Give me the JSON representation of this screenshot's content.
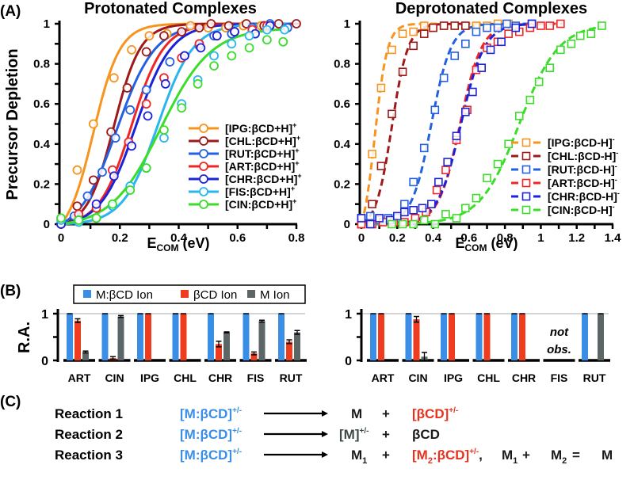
{
  "panel_labels": {
    "a": "(A)",
    "b": "(B)",
    "c": "(C)"
  },
  "colors": {
    "IPG": "#f7941d",
    "CHL": "#9e1a1a",
    "RUT": "#2361e0",
    "ART": "#ee2626",
    "CHR": "#1c22d8",
    "FIS": "#2bb5ee",
    "CIN": "#3bdc2a",
    "bar_complex": "#3a8ee6",
    "bar_bcd": "#f03c1e",
    "bar_m": "#5c6666"
  },
  "chart_data": [
    {
      "type": "line",
      "title": "Protonated Complexes",
      "xlabel_main": "E",
      "xlabel_sub": "COM",
      "xlabel_unit": " (eV)",
      "ylabel": "Precursor Depletion",
      "xlim": [
        0,
        0.8
      ],
      "ylim": [
        0,
        1
      ],
      "xticks": [
        "0",
        "0.2",
        "0.4",
        "0.6",
        "0.8"
      ],
      "xtick_values": [
        0,
        0.2,
        0.4,
        0.6,
        0.8
      ],
      "yticks": [
        "0",
        "0.2",
        "0.4",
        "0.6",
        "0.8",
        "1"
      ],
      "ytick_values": [
        0,
        0.2,
        0.4,
        0.6,
        0.8,
        1
      ],
      "legend_position": "center-right",
      "marker": "circle",
      "line_style": "solid",
      "series": [
        {
          "key": "IPG",
          "name": "[IPG:βCD+H]",
          "charge": "+",
          "fit": {
            "e50": 0.11,
            "k": 0.045,
            "max": 1.0
          },
          "x": [
            0,
            0.055,
            0.11,
            0.18,
            0.24,
            0.3,
            0.36,
            0.44,
            0.5,
            0.56,
            0.62,
            0.68
          ],
          "y": [
            0.03,
            0.27,
            0.5,
            0.73,
            0.87,
            0.94,
            0.95,
            0.99,
            0.98,
            0.98,
            0.99,
            0.99
          ]
        },
        {
          "key": "CHL",
          "name": "[CHL:βCD+H]",
          "charge": "+",
          "fit": {
            "e50": 0.18,
            "k": 0.045,
            "max": 1.0
          },
          "x": [
            0,
            0.055,
            0.11,
            0.17,
            0.225,
            0.29,
            0.35,
            0.41,
            0.47,
            0.51,
            0.57,
            0.63,
            0.69,
            0.74,
            0.8
          ],
          "y": [
            0.0,
            0.09,
            0.22,
            0.46,
            0.68,
            0.86,
            0.94,
            0.96,
            0.98,
            1.0,
            0.99,
            1.0,
            0.99,
            1.0,
            1.0
          ]
        },
        {
          "key": "RUT",
          "name": "[RUT:βCD+H]",
          "charge": "+",
          "fit": {
            "e50": 0.19,
            "k": 0.065,
            "max": 1.0
          },
          "x": [
            0,
            0.045,
            0.09,
            0.14,
            0.185,
            0.235,
            0.29,
            0.37,
            0.42,
            0.47,
            0.52,
            0.58,
            0.65,
            0.71,
            0.77
          ],
          "y": [
            0.0,
            0.04,
            0.14,
            0.26,
            0.43,
            0.57,
            0.67,
            0.81,
            0.84,
            0.89,
            0.94,
            0.95,
            0.98,
            1.0,
            0.98
          ]
        },
        {
          "key": "ART",
          "name": "[ART:βCD+H]",
          "charge": "+",
          "fit": {
            "e50": 0.24,
            "k": 0.055,
            "max": 1.0
          },
          "x": [
            0,
            0.06,
            0.12,
            0.175,
            0.23,
            0.29,
            0.35,
            0.41,
            0.47,
            0.53,
            0.59,
            0.65,
            0.7
          ],
          "y": [
            0.0,
            0.05,
            0.08,
            0.27,
            0.41,
            0.6,
            0.73,
            0.83,
            0.9,
            0.94,
            0.96,
            0.97,
            0.99
          ]
        },
        {
          "key": "CHR",
          "name": "[CHR:βCD+H]",
          "charge": "+",
          "fit": {
            "e50": 0.255,
            "k": 0.06,
            "max": 1.0
          },
          "x": [
            0,
            0.06,
            0.12,
            0.18,
            0.24,
            0.295,
            0.355,
            0.42,
            0.475,
            0.53,
            0.59,
            0.66,
            0.71
          ],
          "y": [
            0.0,
            0.02,
            0.1,
            0.24,
            0.39,
            0.54,
            0.7,
            0.84,
            0.88,
            0.94,
            0.96,
            0.95,
            0.99
          ]
        },
        {
          "key": "FIS",
          "name": "[FIS:βCD+H]",
          "charge": "+",
          "fit": {
            "e50": 0.33,
            "k": 0.06,
            "max": 1.0
          },
          "x": [
            0,
            0.06,
            0.12,
            0.175,
            0.235,
            0.29,
            0.35,
            0.41,
            0.465,
            0.52,
            0.58,
            0.64,
            0.7,
            0.76
          ],
          "y": [
            0.02,
            0.01,
            0.03,
            0.09,
            0.19,
            0.28,
            0.43,
            0.6,
            0.72,
            0.84,
            0.9,
            0.94,
            0.97,
            0.97
          ]
        },
        {
          "key": "CIN",
          "name": "[CIN:βCD+H]",
          "charge": "+",
          "fit": {
            "e50": 0.34,
            "k": 0.085,
            "max": 0.98
          },
          "x": [
            0,
            0.06,
            0.12,
            0.175,
            0.235,
            0.29,
            0.35,
            0.41,
            0.465,
            0.52,
            0.58,
            0.64,
            0.7,
            0.755
          ],
          "y": [
            0.03,
            0.02,
            0.03,
            0.1,
            0.17,
            0.28,
            0.47,
            0.58,
            0.7,
            0.79,
            0.84,
            0.88,
            0.92,
            0.91
          ]
        }
      ]
    },
    {
      "type": "line",
      "title": "Deprotonated Complexes",
      "xlabel_main": "E",
      "xlabel_sub": "COM",
      "xlabel_unit": " (eV)",
      "ylabel": "",
      "xlim": [
        0,
        1.4
      ],
      "ylim": [
        0,
        1
      ],
      "xticks": [
        "0",
        "0.2",
        "0.4",
        "0.6",
        "0.8",
        "1",
        "1.2",
        "1.4"
      ],
      "xtick_values": [
        0,
        0.2,
        0.4,
        0.6,
        0.8,
        1.0,
        1.2,
        1.4
      ],
      "yticks": [
        "0",
        "0.2",
        "0.4",
        "0.6",
        "0.8",
        "1"
      ],
      "ytick_values": [
        0,
        0.2,
        0.4,
        0.6,
        0.8,
        1
      ],
      "legend_position": "center-right",
      "marker": "square",
      "line_style": "dashed",
      "series": [
        {
          "key": "IPG",
          "name": "[IPG:βCD-H]",
          "charge": "-",
          "fit": {
            "e50": 0.075,
            "k": 0.035,
            "max": 1.0
          },
          "x": [
            0,
            0.06,
            0.11,
            0.17,
            0.23,
            0.29,
            0.35,
            0.4,
            0.46,
            0.52,
            0.58,
            0.64,
            0.7,
            0.76,
            0.82
          ],
          "y": [
            0.0,
            0.35,
            0.68,
            0.87,
            0.95,
            0.96,
            0.99,
            0.98,
            0.99,
            0.99,
            0.99,
            0.99,
            0.99,
            1.0,
            1.0
          ]
        },
        {
          "key": "CHL",
          "name": "[CHL:βCD-H]",
          "charge": "-",
          "fit": {
            "e50": 0.17,
            "k": 0.045,
            "max": 1.0
          },
          "x": [
            0,
            0.06,
            0.11,
            0.17,
            0.23,
            0.29,
            0.35,
            0.4,
            0.46,
            0.52,
            0.58
          ],
          "y": [
            0.0,
            0.1,
            0.29,
            0.55,
            0.76,
            0.89,
            0.95,
            0.98,
            0.99,
            0.99,
            0.99
          ]
        },
        {
          "key": "RUT",
          "name": "[RUT:βCD-H]",
          "charge": "-",
          "fit": {
            "e50": 0.39,
            "k": 0.055,
            "max": 1.0
          },
          "x": [
            0,
            0.05,
            0.1,
            0.15,
            0.2,
            0.24,
            0.29,
            0.35,
            0.41,
            0.46,
            0.52,
            0.58,
            0.64,
            0.7,
            0.76,
            0.81,
            0.86,
            0.95
          ],
          "y": [
            0.03,
            0.04,
            0.02,
            0.03,
            0.03,
            0.1,
            0.21,
            0.38,
            0.57,
            0.73,
            0.84,
            0.9,
            0.96,
            0.98,
            0.98,
            1.0,
            0.99,
            1.0
          ]
        },
        {
          "key": "ART",
          "name": "[ART:βCD-H]",
          "charge": "-",
          "fit": {
            "e50": 0.55,
            "k": 0.06,
            "max": 1.0
          },
          "x": [
            0,
            0.06,
            0.12,
            0.18,
            0.24,
            0.3,
            0.36,
            0.42,
            0.47,
            0.53,
            0.59,
            0.64,
            0.7,
            0.76,
            0.82,
            0.88,
            0.94,
            1.0,
            1.05,
            1.11
          ],
          "y": [
            0.0,
            0.0,
            0.01,
            0.01,
            0.01,
            0.03,
            0.06,
            0.17,
            0.27,
            0.42,
            0.57,
            0.77,
            0.88,
            0.91,
            0.95,
            0.96,
            0.98,
            0.99,
            0.99,
            1.0
          ]
        },
        {
          "key": "CHR",
          "name": "[CHR:βCD-H]",
          "charge": "-",
          "fit": {
            "e50": 0.555,
            "k": 0.065,
            "max": 1.0
          },
          "x": [
            0,
            0.05,
            0.1,
            0.16,
            0.2,
            0.24,
            0.29,
            0.34,
            0.39,
            0.43,
            0.48,
            0.53,
            0.58,
            0.62,
            0.67,
            0.72,
            0.78,
            0.86,
            0.95
          ],
          "y": [
            0.03,
            0.0,
            0.03,
            0.02,
            0.04,
            0.06,
            0.07,
            0.08,
            0.1,
            0.21,
            0.31,
            0.44,
            0.56,
            0.66,
            0.78,
            0.87,
            0.91,
            0.98,
            1.0
          ]
        },
        {
          "key": "CIN",
          "name": "[CIN:βCD-H]",
          "charge": "-",
          "fit": {
            "e50": 0.88,
            "k": 0.11,
            "max": 1.0
          },
          "x": [
            0.17,
            0.23,
            0.29,
            0.35,
            0.41,
            0.47,
            0.53,
            0.58,
            0.64,
            0.7,
            0.76,
            0.82,
            0.88,
            0.94,
            0.99,
            1.05,
            1.11,
            1.17,
            1.22,
            1.28,
            1.34
          ],
          "y": [
            0.0,
            0.0,
            0.0,
            0.02,
            0.0,
            0.05,
            0.03,
            0.08,
            0.13,
            0.23,
            0.3,
            0.4,
            0.54,
            0.62,
            0.71,
            0.78,
            0.87,
            0.9,
            0.94,
            0.95,
            0.99
          ]
        }
      ]
    },
    {
      "type": "bar",
      "title": "",
      "ylabel": "R.A.",
      "ylim": [
        0,
        1
      ],
      "yticks": [
        "0",
        "1"
      ],
      "categories": [
        "ART",
        "CIN",
        "IPG",
        "CHL",
        "CHR",
        "FIS",
        "RUT"
      ],
      "legend": [
        "M:βCD Ion",
        "βCD Ion",
        "M Ion"
      ],
      "legend_position": "top",
      "series": [
        {
          "name": "M:βCD Ion",
          "values": [
            1,
            1,
            1,
            1,
            1,
            1,
            1
          ],
          "errors": [
            0,
            0,
            0,
            0,
            0,
            0,
            0
          ]
        },
        {
          "name": "βCD Ion",
          "values": [
            0.85,
            0.05,
            1,
            1,
            0.35,
            0.15,
            0.4
          ],
          "errors": [
            0.04,
            0.03,
            0,
            0,
            0.06,
            0.03,
            0.04
          ]
        },
        {
          "name": "M Ion",
          "values": [
            0.18,
            0.94,
            0,
            0,
            0.6,
            0.84,
            0.6
          ],
          "errors": [
            0.02,
            0.02,
            0,
            0,
            0.01,
            0.02,
            0.04
          ]
        }
      ]
    },
    {
      "type": "bar",
      "title": "",
      "ylabel": "",
      "ylim": [
        0,
        1
      ],
      "yticks": [
        "0",
        "1"
      ],
      "categories": [
        "ART",
        "CIN",
        "IPG",
        "CHL",
        "CHR",
        "FIS",
        "RUT"
      ],
      "not_observed": [
        "FIS"
      ],
      "not_observed_label": [
        "not",
        "obs."
      ],
      "series": [
        {
          "name": "M:βCD Ion",
          "values": [
            1,
            1,
            1,
            1,
            1,
            null,
            1
          ],
          "errors": [
            0,
            0,
            0,
            0,
            0,
            null,
            0
          ]
        },
        {
          "name": "βCD Ion",
          "values": [
            1,
            0.88,
            1,
            1,
            1,
            null,
            0
          ],
          "errors": [
            0,
            0.06,
            0,
            0,
            0,
            null,
            0
          ]
        },
        {
          "name": "M Ion",
          "values": [
            0,
            0.08,
            0,
            0,
            0,
            null,
            1
          ],
          "errors": [
            0,
            0.09,
            0,
            0,
            0,
            null,
            0
          ]
        }
      ]
    }
  ],
  "reactions": [
    {
      "label": "Reaction 1",
      "reactant": "[M:βCD]",
      "reactant_sup": "+/-",
      "products": [
        {
          "text": "M",
          "color": "dark"
        },
        {
          "text": "+",
          "color": "dark"
        },
        {
          "text": "[βCD]",
          "sup": "+/-",
          "color": "red"
        }
      ]
    },
    {
      "label": "Reaction 2",
      "reactant": "[M:βCD]",
      "reactant_sup": "+/-",
      "products": [
        {
          "text": "[M]",
          "sup": "+/-",
          "color": "gray"
        },
        {
          "text": "+",
          "color": "dark"
        },
        {
          "text": "βCD",
          "color": "dark"
        }
      ]
    },
    {
      "label": "Reaction 3",
      "reactant": "[M:βCD]",
      "reactant_sup": "+/-",
      "products": [
        {
          "text": "M",
          "sub": "1",
          "color": "dark"
        },
        {
          "text": "+",
          "color": "dark"
        },
        {
          "text": "[M",
          "sub": "2",
          "after": ":βCD]",
          "sup": "+/-",
          "trail": ",",
          "color": "red"
        },
        {
          "text": "M",
          "sub": "1",
          "color": "dark"
        },
        {
          "text": "+",
          "color": "dark"
        },
        {
          "text": "M",
          "sub": "2",
          "color": "dark"
        },
        {
          "text": "=",
          "color": "dark"
        },
        {
          "text": "M",
          "color": "dark"
        }
      ]
    }
  ]
}
